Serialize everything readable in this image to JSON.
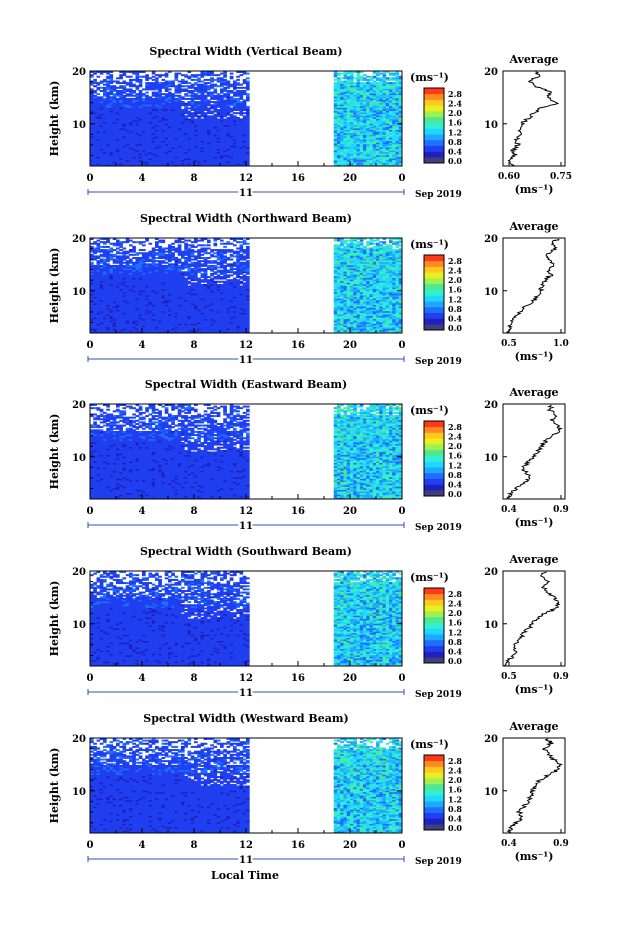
{
  "figure": {
    "xlabel": "Local Time",
    "ylabel": "Height (km)",
    "date_label": "Sep 2019",
    "day_label": "11",
    "x_ticks": [
      "0",
      "4",
      "8",
      "12",
      "16",
      "20",
      "0"
    ],
    "y_ticks": [
      "10",
      "20"
    ],
    "colorbar_unit": "(ms⁻¹)",
    "colorbar_ticks": [
      "2.8",
      "2.4",
      "2.0",
      "1.6",
      "1.2",
      "0.8",
      "0.4",
      "0.0"
    ],
    "avg_title": "Average",
    "avg_unit": "(ms⁻¹)"
  },
  "colors": {
    "scale": [
      "#3f3f7a",
      "#2020c0",
      "#1f3ff0",
      "#1e6fff",
      "#1fa8ff",
      "#20d8ff",
      "#33f0d0",
      "#4fe890",
      "#9ff050",
      "#e8f020",
      "#ffc820",
      "#ff8a20",
      "#ff3a1a"
    ],
    "line": "#000000"
  },
  "chart_data": [
    {
      "type": "heatmap",
      "title": "Spectral Width (Vertical Beam)",
      "xlabel": "Local Time",
      "ylabel": "Height (km)",
      "xlim": [
        0,
        24
      ],
      "ylim": [
        2,
        20
      ],
      "zlim": [
        0.0,
        3.0
      ],
      "data_gap": [
        12.3,
        18.8
      ],
      "average_profile": {
        "title": "Average",
        "xlabel": "(ms⁻¹)",
        "xticks": [
          "0.60",
          "0.75"
        ],
        "xlim": [
          0.58,
          0.78
        ],
        "height": [
          2,
          3,
          4,
          5,
          6,
          7,
          8,
          9,
          10,
          11,
          12,
          13,
          14,
          15,
          16,
          17,
          18,
          19,
          20
        ],
        "value": [
          0.61,
          0.6,
          0.62,
          0.61,
          0.63,
          0.62,
          0.64,
          0.63,
          0.64,
          0.66,
          0.68,
          0.7,
          0.76,
          0.72,
          0.74,
          0.69,
          0.66,
          0.7,
          0.68
        ]
      }
    },
    {
      "type": "heatmap",
      "title": "Spectral Width (Northward Beam)",
      "xlabel": "Local Time",
      "ylabel": "Height (km)",
      "xlim": [
        0,
        24
      ],
      "ylim": [
        2,
        20
      ],
      "zlim": [
        0.0,
        3.0
      ],
      "data_gap": [
        12.3,
        18.8
      ],
      "average_profile": {
        "title": "Average",
        "xlabel": "(ms⁻¹)",
        "xticks": [
          "0.5",
          "1.0"
        ],
        "xlim": [
          0.45,
          1.0
        ],
        "height": [
          2,
          3,
          4,
          5,
          6,
          7,
          8,
          9,
          10,
          11,
          12,
          13,
          14,
          15,
          16,
          17,
          18,
          19,
          20
        ],
        "value": [
          0.5,
          0.52,
          0.51,
          0.56,
          0.6,
          0.65,
          0.72,
          0.75,
          0.78,
          0.8,
          0.82,
          0.88,
          0.84,
          0.9,
          0.86,
          0.85,
          0.92,
          0.88,
          0.95
        ]
      }
    },
    {
      "type": "heatmap",
      "title": "Spectral Width (Eastward Beam)",
      "xlabel": "Local Time",
      "ylabel": "Height (km)",
      "xlim": [
        0,
        24
      ],
      "ylim": [
        2,
        20
      ],
      "zlim": [
        0.0,
        3.0
      ],
      "data_gap": [
        12.3,
        18.8
      ],
      "average_profile": {
        "title": "Average",
        "xlabel": "(ms⁻¹)",
        "xticks": [
          "0.4",
          "0.9"
        ],
        "xlim": [
          0.38,
          0.92
        ],
        "height": [
          2,
          3,
          4,
          5,
          6,
          7,
          8,
          9,
          10,
          11,
          12,
          13,
          14,
          15,
          16,
          17,
          18,
          19,
          20
        ],
        "value": [
          0.42,
          0.45,
          0.5,
          0.55,
          0.62,
          0.58,
          0.55,
          0.6,
          0.64,
          0.68,
          0.72,
          0.75,
          0.82,
          0.88,
          0.86,
          0.8,
          0.84,
          0.78,
          0.82
        ]
      }
    },
    {
      "type": "heatmap",
      "title": "Spectral Width (Southward Beam)",
      "xlabel": "Local Time",
      "ylabel": "Height (km)",
      "xlim": [
        0,
        24
      ],
      "ylim": [
        2,
        20
      ],
      "zlim": [
        0.0,
        3.0
      ],
      "data_gap": [
        12.3,
        18.8
      ],
      "average_profile": {
        "title": "Average",
        "xlabel": "(ms⁻¹)",
        "xticks": [
          "0.5",
          "0.9"
        ],
        "xlim": [
          0.48,
          0.92
        ],
        "height": [
          2,
          3,
          4,
          5,
          6,
          7,
          8,
          9,
          10,
          11,
          12,
          13,
          14,
          15,
          16,
          17,
          18,
          19,
          20
        ],
        "value": [
          0.5,
          0.52,
          0.55,
          0.57,
          0.56,
          0.6,
          0.62,
          0.66,
          0.68,
          0.72,
          0.78,
          0.86,
          0.88,
          0.84,
          0.8,
          0.76,
          0.82,
          0.74,
          0.78
        ]
      }
    },
    {
      "type": "heatmap",
      "title": "Spectral Width (Westward Beam)",
      "xlabel": "Local Time",
      "ylabel": "Height (km)",
      "xlim": [
        0,
        24
      ],
      "ylim": [
        2,
        20
      ],
      "zlim": [
        0.0,
        3.0
      ],
      "data_gap": [
        12.3,
        18.8
      ],
      "average_profile": {
        "title": "Average",
        "xlabel": "(ms⁻¹)",
        "xticks": [
          "0.4",
          "0.9"
        ],
        "xlim": [
          0.38,
          0.92
        ],
        "height": [
          2,
          3,
          4,
          5,
          6,
          7,
          8,
          9,
          10,
          11,
          12,
          13,
          14,
          15,
          16,
          17,
          18,
          19,
          20
        ],
        "value": [
          0.42,
          0.45,
          0.5,
          0.55,
          0.52,
          0.56,
          0.6,
          0.62,
          0.64,
          0.66,
          0.7,
          0.78,
          0.86,
          0.88,
          0.82,
          0.78,
          0.74,
          0.8,
          0.76
        ]
      }
    }
  ]
}
